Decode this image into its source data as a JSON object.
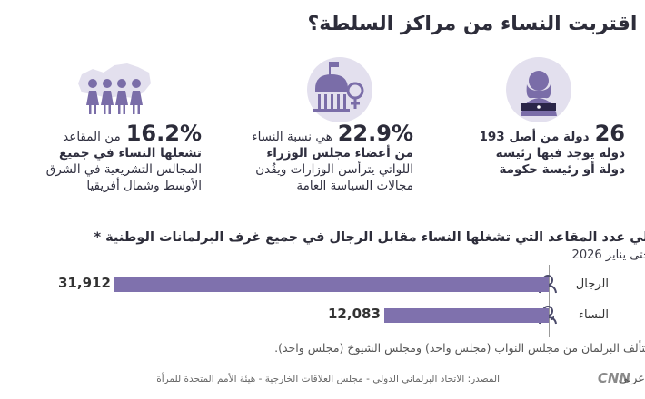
{
  "title": "هل اقتربت النساء من مراكز السلطة؟",
  "stats": {
    "leaders": {
      "icon": "woman-leader-icon",
      "number": "26",
      "line1_rest": "دولة من أصل 193",
      "line2": "دولة يوجد فيها رئيسة",
      "line3": "دولة أو رئيسة حكومة"
    },
    "ministers": {
      "icon": "government-building-female-icon",
      "number": "22.9%",
      "line1_rest": "هي نسبة النساء",
      "line2": "من أعضاء مجلس الوزراء",
      "line3": "اللواتي يترأسن الوزارات ويقُدن",
      "line4": "مجالات السياسة العامة"
    },
    "parliament": {
      "icon": "women-arab-map-icon",
      "number": "16.2%",
      "line1_rest": "من المقاعد",
      "line2": "تشغلها النساء في جميع",
      "line3": "المجالس التشريعية في الشرق",
      "line4": "الأوسط وشمال أفريقيا"
    }
  },
  "parliament_chart": {
    "title": "إجمالي عدد المقاعد التي تشغلها النساء مقابل الرجال في جميع غرف البرلمانات الوطنية *",
    "subtitle": "حتى يناير 2026"
  },
  "chart_data": {
    "type": "bar",
    "orientation": "horizontal",
    "categories": [
      "الرجال",
      "النساء"
    ],
    "values": [
      31912,
      12083
    ],
    "value_labels": [
      "31,912",
      "12,083"
    ],
    "colors": {
      "men": "#7f71ad",
      "women": "#7f71ad"
    }
  },
  "note": "* يتألف البرلمان من مجلس النواب (مجلس واحد) ومجلس الشيوخ (مجلس واحد).",
  "source": "المصدر: الاتحاد البرلماني الدولي - مجلس العلاقات الخارجية - هيئة الأمم المتحدة للمرأة",
  "brand": {
    "logo": "CNN",
    "word": "عربي"
  }
}
